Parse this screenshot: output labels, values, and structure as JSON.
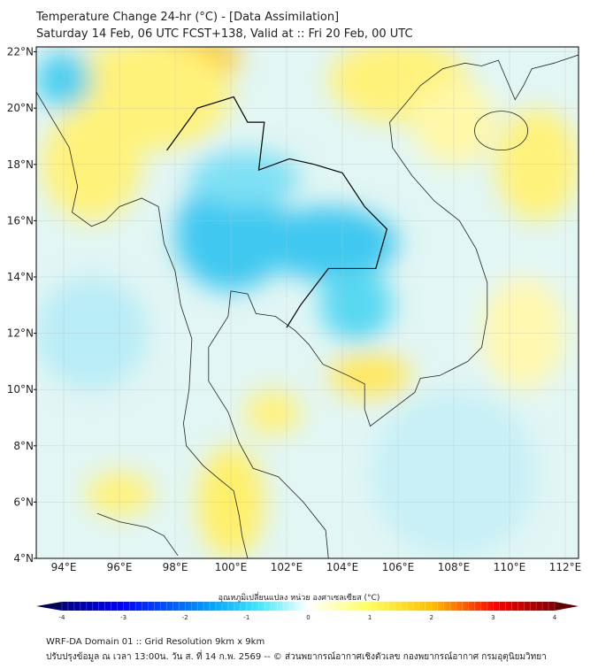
{
  "header": {
    "title": "Temperature Change 24-hr (°C) - [Data Assimilation]",
    "subtitle": "Saturday 14 Feb, 06 UTC FCST+138, Valid at :: Fri 20 Feb, 00 UTC"
  },
  "map": {
    "lat_labels": [
      "4°N",
      "6°N",
      "8°N",
      "10°N",
      "12°N",
      "14°N",
      "16°N",
      "18°N",
      "20°N",
      "22°N"
    ],
    "lat_values": [
      4,
      6,
      8,
      10,
      12,
      14,
      16,
      18,
      20,
      22
    ],
    "lon_labels": [
      "94°E",
      "96°E",
      "98°E",
      "100°E",
      "102°E",
      "104°E",
      "106°E",
      "108°E",
      "110°E",
      "112°E"
    ],
    "lon_values": [
      94,
      96,
      98,
      100,
      102,
      104,
      106,
      108,
      110,
      112
    ],
    "extent": {
      "lon": [
        93,
        112.5
      ],
      "lat": [
        4,
        22.2
      ]
    }
  },
  "colorbar": {
    "label": "อุณหภูมิเปลี่ยนแปลง หน่วย องศาเซลเซียส (°C)",
    "ticks": [
      "-4",
      "-3",
      "-2",
      "-1",
      "0",
      "1",
      "2",
      "3",
      "4"
    ],
    "range": [
      -4,
      4
    ],
    "colors": [
      "#000080",
      "#0000ff",
      "#00a0ff",
      "#40e8ff",
      "#ffffff",
      "#ffff60",
      "#ffc000",
      "#ff0000",
      "#800000"
    ]
  },
  "footer": {
    "line1": "WRF-DA Domain 01 :: Grid Resolution 9km x 9km",
    "line2": "ปรับปรุงข้อมูล ณ เวลา 13:00น. วัน ส. ที่ 14 ก.พ. 2569 -- © ส่วนพยากรณ์อากาศเชิงตัวเลข กองพยากรณ์อากาศ กรมอุตุนิยมวิทยา"
  }
}
